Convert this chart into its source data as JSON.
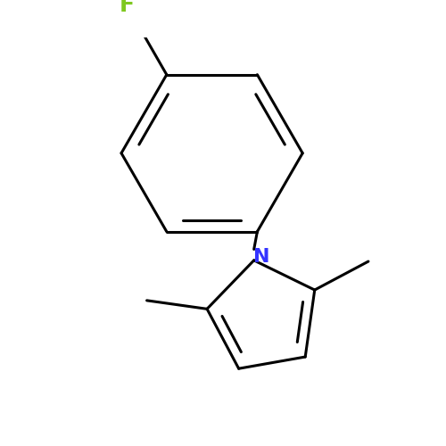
{
  "background_color": "#ffffff",
  "bond_color": "#000000",
  "bond_width": 2.2,
  "F_color": "#7fc820",
  "N_color": "#3333ff",
  "font_size_F": 18,
  "font_size_N": 16,
  "figsize": [
    5.0,
    5.0
  ],
  "dpi": 100,
  "xlim": [
    -0.3,
    2.5
  ],
  "ylim": [
    -0.1,
    3.6
  ]
}
